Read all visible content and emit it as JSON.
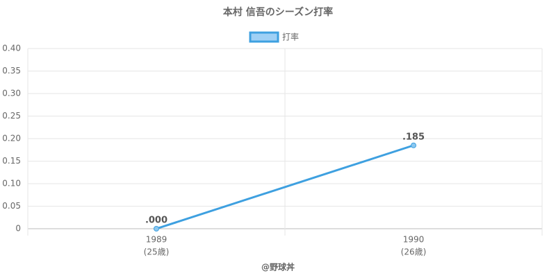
{
  "chart_data": {
    "type": "line",
    "title": "本村 信吾のシーズン打率",
    "categories": [
      "1989",
      "1990"
    ],
    "x_sublabels": [
      "(25歳)",
      "(26歳)"
    ],
    "series": [
      {
        "name": "打率",
        "color": "#3ea0e0",
        "values": [
          0,
          0.185
        ],
        "value_labels": [
          ".000",
          ".185"
        ]
      }
    ],
    "ylim": [
      0,
      0.4
    ],
    "yticks": [
      0,
      0.05,
      {
        "value": 0.1,
        "label": "0.10"
      },
      0.15,
      {
        "value": 0.2,
        "label": "0.20"
      },
      0.25,
      {
        "value": 0.3,
        "label": "0.30"
      },
      0.35,
      {
        "value": 0.4,
        "label": "0.40"
      }
    ],
    "grid": true,
    "legend": "top",
    "footer": "@野球丼"
  }
}
